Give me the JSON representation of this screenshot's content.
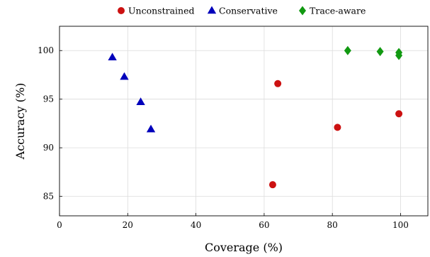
{
  "chart_data": {
    "type": "scatter",
    "xlabel": "Coverage (%)",
    "ylabel": "Accuracy (%)",
    "xlim": [
      0,
      108
    ],
    "ylim": [
      83,
      102.5
    ],
    "xticks": [
      "0",
      "20",
      "40",
      "60",
      "80",
      "100"
    ],
    "yticks": [
      "85",
      "90",
      "95",
      "100"
    ],
    "grid": true,
    "legend_position": "top-center",
    "series": [
      {
        "name": "Unconstrained",
        "marker": "circle",
        "color": "#cc1111",
        "points": [
          {
            "x": 62.5,
            "y": 86.2
          },
          {
            "x": 64.0,
            "y": 96.6
          },
          {
            "x": 81.5,
            "y": 92.1
          },
          {
            "x": 99.5,
            "y": 93.5
          }
        ]
      },
      {
        "name": "Conservative",
        "marker": "triangle",
        "color": "#0000bb",
        "points": [
          {
            "x": 15.5,
            "y": 99.3
          },
          {
            "x": 19.0,
            "y": 97.3
          },
          {
            "x": 23.8,
            "y": 94.7
          },
          {
            "x": 26.8,
            "y": 91.9
          }
        ]
      },
      {
        "name": "Trace-aware",
        "marker": "diamond",
        "color": "#119911",
        "points": [
          {
            "x": 84.5,
            "y": 100.0
          },
          {
            "x": 94.0,
            "y": 99.9
          },
          {
            "x": 99.5,
            "y": 99.8
          },
          {
            "x": 99.5,
            "y": 99.5
          }
        ]
      }
    ]
  }
}
